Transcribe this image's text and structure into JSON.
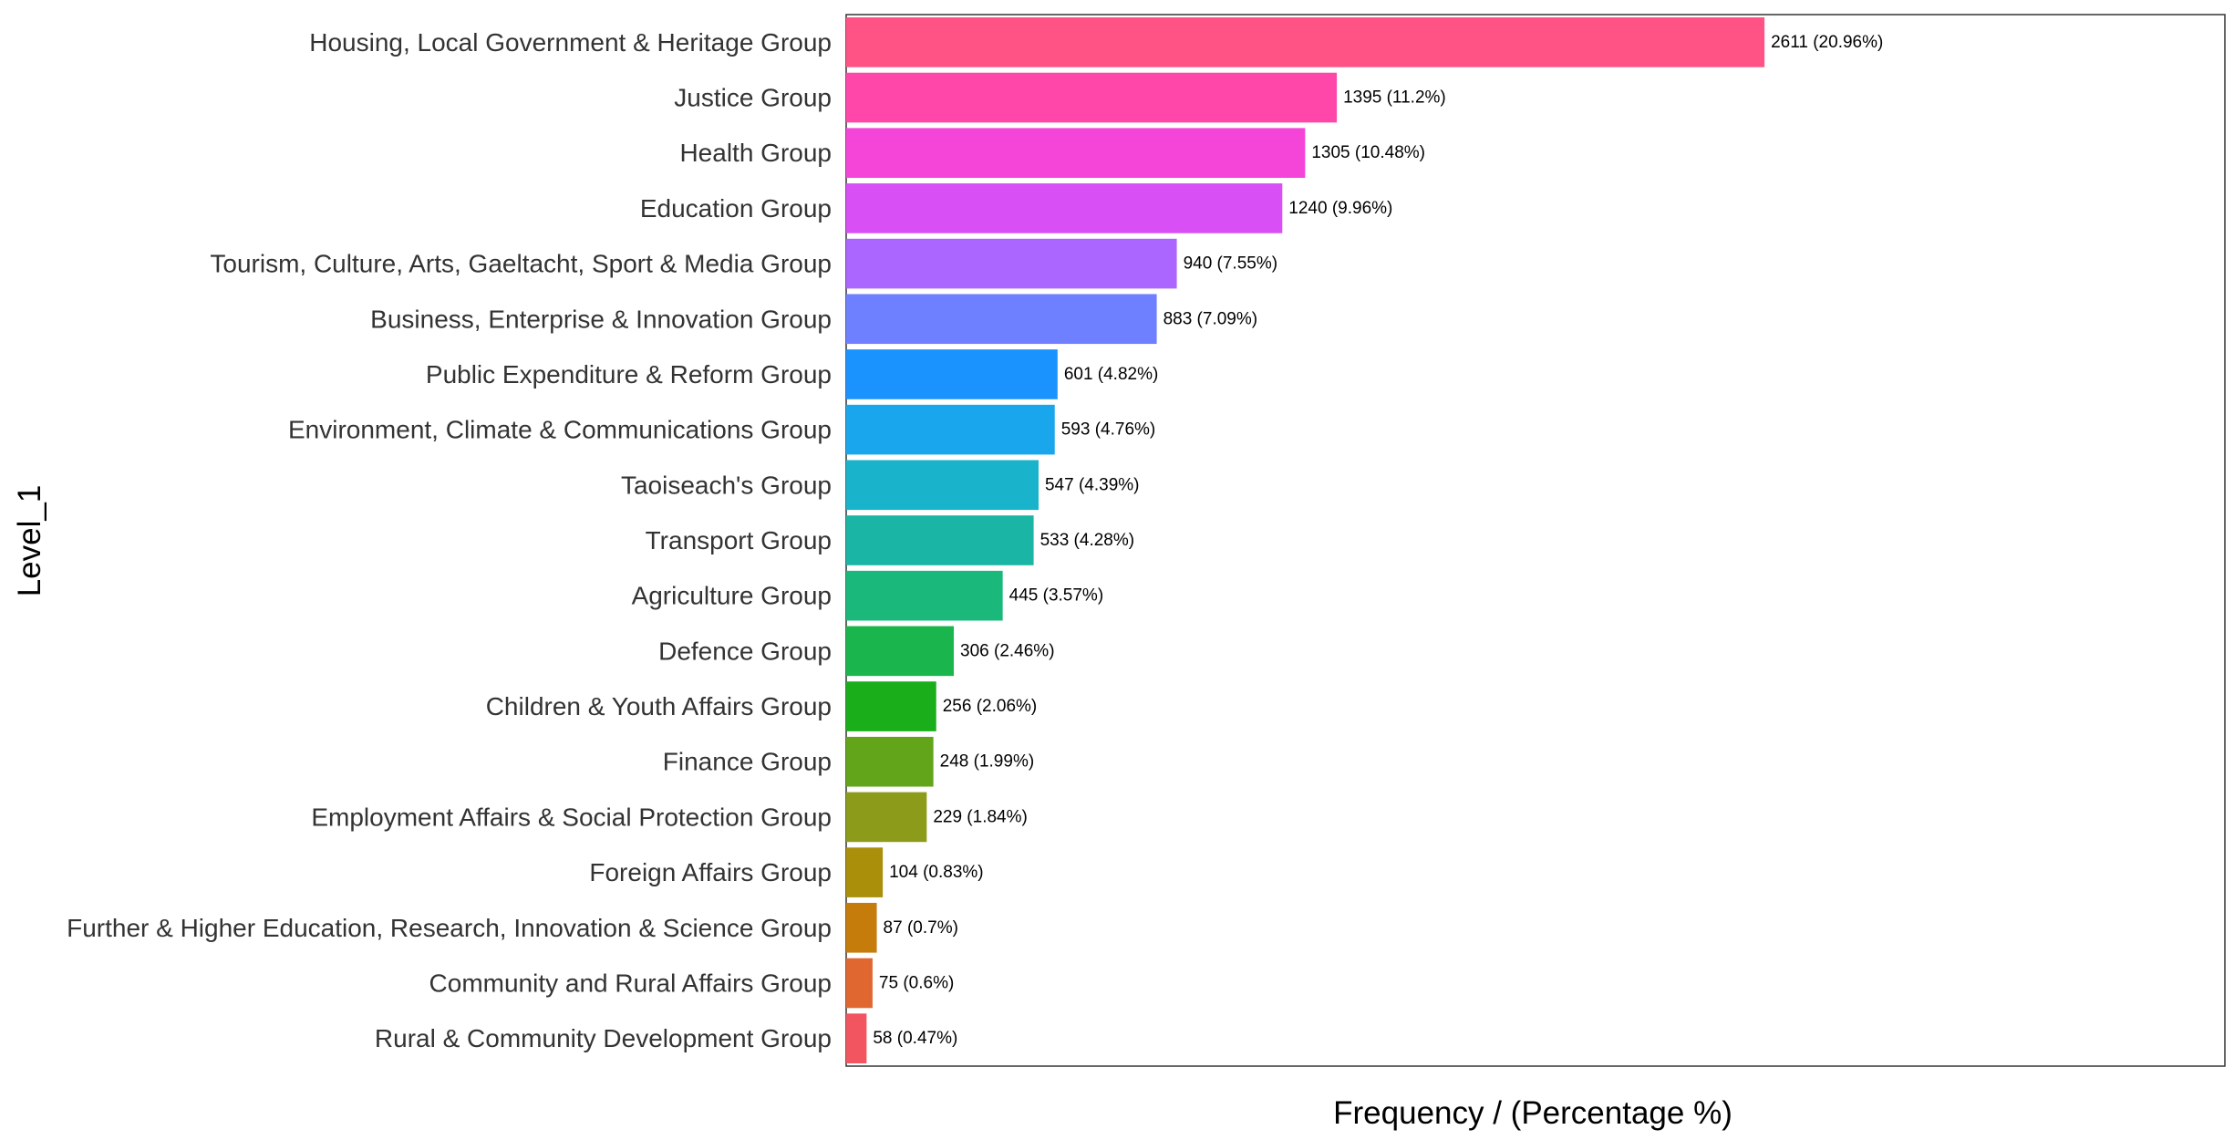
{
  "chart_data": {
    "type": "bar",
    "orientation": "horizontal",
    "xlabel": "Frequency / (Percentage %)",
    "ylabel": "Level_1",
    "xlim": [
      0,
      3920
    ],
    "grid": false,
    "legend": "none",
    "categories": [
      "Housing, Local Government & Heritage Group",
      "Justice Group",
      "Health Group",
      "Education Group",
      "Tourism, Culture, Arts, Gaeltacht, Sport & Media Group",
      "Business, Enterprise & Innovation Group",
      "Public Expenditure & Reform Group",
      "Environment, Climate & Communications Group",
      "Taoiseach's Group",
      "Transport Group",
      "Agriculture Group",
      "Defence Group",
      "Children & Youth Affairs Group",
      "Finance Group",
      "Employment Affairs & Social Protection Group",
      "Foreign Affairs Group",
      "Further & Higher Education, Research, Innovation & Science Group",
      "Community and Rural Affairs Group",
      "Rural & Community Development Group"
    ],
    "values": [
      2611,
      1395,
      1305,
      1240,
      940,
      883,
      601,
      593,
      547,
      533,
      445,
      306,
      256,
      248,
      229,
      104,
      87,
      75,
      58
    ],
    "data_labels": [
      "2611 (20.96%)",
      "1395 (11.2%)",
      "1305 (10.48%)",
      "1240 (9.96%)",
      "940 (7.55%)",
      "883 (7.09%)",
      "601 (4.82%)",
      "593 (4.76%)",
      "547 (4.39%)",
      "533 (4.28%)",
      "445 (3.57%)",
      "306 (2.46%)",
      "256 (2.06%)",
      "248 (1.99%)",
      "229 (1.84%)",
      "104 (0.83%)",
      "87 (0.7%)",
      "75 (0.6%)",
      "58 (0.47%)"
    ],
    "colors": [
      "#FF5285",
      "#FF47AA",
      "#F545D8",
      "#D74FF5",
      "#AA66FF",
      "#6E80FF",
      "#1A93FF",
      "#1AA6ED",
      "#1AB3CC",
      "#1AB5A5",
      "#1AB87A",
      "#1AB54D",
      "#1AAE1A",
      "#62A51A",
      "#8C9B1A",
      "#AA8F0A",
      "#C67C0A",
      "#E06830",
      "#F2555F"
    ]
  }
}
